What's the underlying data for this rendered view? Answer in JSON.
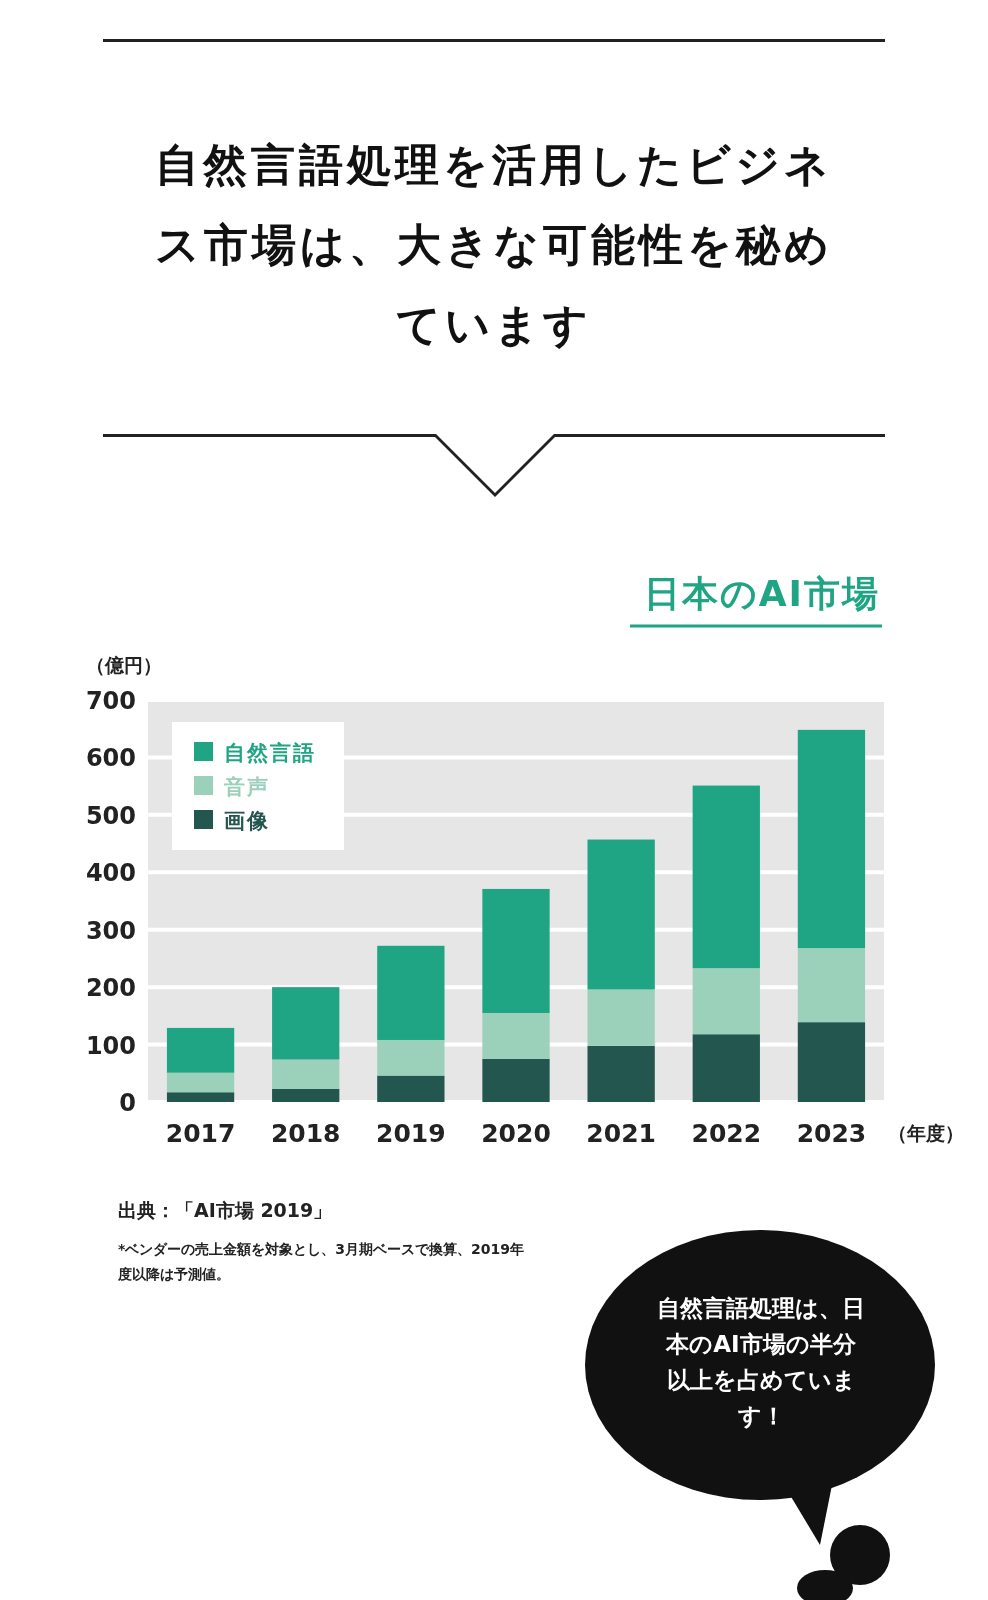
{
  "chart_data": {
    "type": "bar",
    "stacked": true,
    "title": "自然言語処理を活用したビジネス市場は、大きな可能性を秘めています",
    "subtitle": "日本のAI市場",
    "ylabel": "（億円）",
    "xlabel": "（年度）",
    "categories": [
      "2017",
      "2018",
      "2019",
      "2020",
      "2021",
      "2022",
      "2023"
    ],
    "series": [
      {
        "name": "画像",
        "color": "#245650",
        "values": [
          17,
          23,
          46,
          75,
          98,
          118,
          139
        ]
      },
      {
        "name": "音声",
        "color": "#9bd0bb",
        "values": [
          34,
          51,
          62,
          80,
          98,
          115,
          129
        ]
      },
      {
        "name": "自然言語",
        "color": "#1fa583",
        "values": [
          78,
          126,
          164,
          216,
          261,
          318,
          380
        ]
      }
    ],
    "ylim": [
      0,
      700
    ],
    "yticks": [
      0,
      100,
      200,
      300,
      400,
      500,
      600,
      700
    ],
    "grid": "y",
    "legend": "top left",
    "annotations": [
      "出典：「AI市場 2019」",
      "*ベンダーの売上金額を対象とし、3月期ベースで換算、2019年度以降は予測値。",
      "自然言語処理は、日本のAI市場の半分以上を占めています！"
    ]
  }
}
